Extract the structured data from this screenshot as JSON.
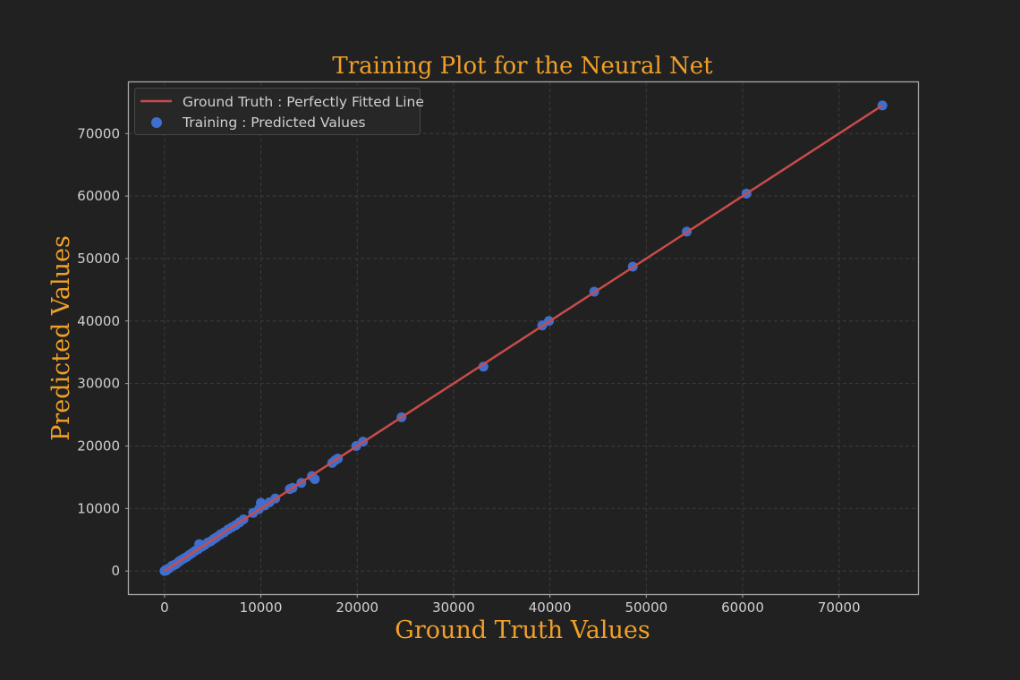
{
  "chart_data": {
    "type": "scatter",
    "title": "Training Plot for the Neural Net",
    "xlabel": "Ground Truth Values",
    "ylabel": "Predicted Values",
    "xlim": [
      -3700,
      78200
    ],
    "ylim": [
      -3700,
      78200
    ],
    "x_ticks": [
      0,
      10000,
      20000,
      30000,
      40000,
      50000,
      60000,
      70000
    ],
    "y_ticks": [
      0,
      10000,
      20000,
      30000,
      40000,
      50000,
      60000,
      70000
    ],
    "x_tick_labels": [
      "0",
      "10000",
      "20000",
      "30000",
      "40000",
      "50000",
      "60000",
      "70000"
    ],
    "y_tick_labels": [
      "0",
      "10000",
      "20000",
      "30000",
      "40000",
      "50000",
      "60000",
      "70000"
    ],
    "grid": true,
    "legend_position": "top-left",
    "series": [
      {
        "name": "Ground Truth : Perfectly Fitted Line",
        "kind": "line",
        "color": "#c94b4b",
        "x": [
          0,
          74500
        ],
        "y": [
          0,
          74500
        ]
      },
      {
        "name": "Training : Predicted Values",
        "kind": "scatter",
        "color": "#3e6fcf",
        "x": [
          0,
          100,
          200,
          300,
          500,
          800,
          1000,
          1200,
          1500,
          1700,
          2000,
          2300,
          2600,
          2900,
          3200,
          3500,
          3600,
          3900,
          4200,
          4500,
          4800,
          5100,
          5400,
          5800,
          6200,
          6600,
          7000,
          7400,
          7800,
          8200,
          9200,
          9800,
          10000,
          10400,
          10900,
          11500,
          13000,
          13300,
          14200,
          15300,
          15600,
          17400,
          17700,
          18000,
          19900,
          20600,
          24600,
          33100,
          39200,
          39900,
          44600,
          48600,
          54200,
          60400,
          74500
        ],
        "y": [
          0,
          150,
          100,
          300,
          450,
          850,
          950,
          1100,
          1500,
          1700,
          2000,
          2250,
          2600,
          2900,
          3250,
          3500,
          4300,
          3900,
          4200,
          4550,
          4750,
          5100,
          5400,
          5850,
          6200,
          6650,
          7000,
          7350,
          7800,
          8250,
          9300,
          9900,
          10900,
          10500,
          11000,
          11600,
          13100,
          13300,
          14100,
          15200,
          14700,
          17300,
          17700,
          18000,
          20000,
          20700,
          24600,
          32700,
          39300,
          40000,
          44700,
          48700,
          54300,
          60400,
          74500
        ]
      }
    ]
  },
  "colors": {
    "background": "#212121",
    "title": "#f0a028",
    "axis_frame": "#a8a8a8",
    "tick_text": "#d0d0d0",
    "grid": "#3c3c3c",
    "legend_background": "#272727",
    "legend_border": "#474747",
    "legend_text": "#d0d0d0"
  }
}
